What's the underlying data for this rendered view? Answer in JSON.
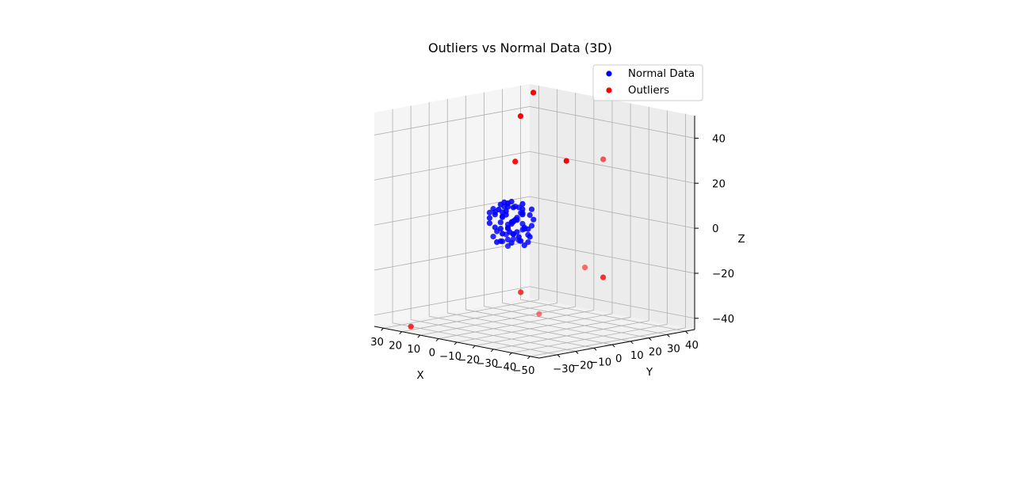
{
  "chart_data": {
    "type": "scatter",
    "projection": "3d",
    "title": "Outliers vs Normal Data (3D)",
    "xlabel": "X",
    "ylabel": "Y",
    "zlabel": "Z",
    "xlim": [
      -55,
      35
    ],
    "ylim": [
      -40,
      45
    ],
    "zlim": [
      -45,
      50
    ],
    "xticks": [
      -50,
      -40,
      -30,
      -20,
      -10,
      0,
      10,
      20,
      30
    ],
    "yticks": [
      -30,
      -20,
      -10,
      0,
      10,
      20,
      30,
      40
    ],
    "zticks": [
      -40,
      -20,
      0,
      20,
      40
    ],
    "xtick_labels": [
      "−50",
      "−40",
      "−30",
      "−20",
      "−10",
      "0",
      "10",
      "20",
      "30"
    ],
    "ytick_labels": [
      "−30",
      "−20",
      "−10",
      "0",
      "10",
      "20",
      "30",
      "40"
    ],
    "ztick_labels": [
      "−40",
      "−20",
      "0",
      "20",
      "40"
    ],
    "grid": true,
    "legend_position": "upper-right",
    "colors": {
      "normal": "#0000ff",
      "outliers": "#ff0000"
    },
    "series": [
      {
        "name": "Normal Data",
        "color": "#0000ff",
        "points": [
          [
            -2,
            1,
            3
          ],
          [
            3,
            -2,
            5
          ],
          [
            -4,
            3,
            -2
          ],
          [
            5,
            4,
            -5
          ],
          [
            1,
            -3,
            8
          ],
          [
            -6,
            -1,
            6
          ],
          [
            2,
            6,
            -7
          ],
          [
            -3,
            -5,
            1
          ],
          [
            7,
            2,
            2
          ],
          [
            -1,
            4,
            -8
          ],
          [
            4,
            -6,
            7
          ],
          [
            -7,
            2,
            -4
          ],
          [
            0,
            0,
            0
          ],
          [
            6,
            -3,
            -2
          ],
          [
            -5,
            5,
            4
          ],
          [
            3,
            3,
            9
          ],
          [
            -2,
            -4,
            -6
          ],
          [
            8,
            1,
            5
          ],
          [
            -8,
            -2,
            -1
          ],
          [
            1,
            7,
            3
          ],
          [
            -4,
            -7,
            -3
          ],
          [
            5,
            -1,
            8
          ],
          [
            2,
            2,
            -9
          ],
          [
            -6,
            6,
            2
          ],
          [
            4,
            5,
            6
          ],
          [
            -3,
            1,
            -7
          ],
          [
            7,
            -5,
            0
          ],
          [
            -1,
            -6,
            4
          ],
          [
            0,
            3,
            -4
          ],
          [
            6,
            6,
            -1
          ],
          [
            -5,
            -3,
            9
          ],
          [
            3,
            -7,
            -5
          ],
          [
            -7,
            4,
            7
          ],
          [
            1,
            -1,
            -2
          ],
          [
            8,
            3,
            -6
          ],
          [
            -2,
            7,
            -3
          ],
          [
            5,
            2,
            3
          ],
          [
            -4,
            0,
            8
          ],
          [
            2,
            -4,
            1
          ],
          [
            -8,
            3,
            0
          ],
          [
            4,
            -2,
            -8
          ],
          [
            -1,
            5,
            6
          ],
          [
            6,
            0,
            -3
          ],
          [
            -3,
            -2,
            2
          ],
          [
            0,
            -5,
            -7
          ],
          [
            7,
            4,
            4
          ],
          [
            -6,
            -5,
            -5
          ],
          [
            3,
            1,
            7
          ],
          [
            -5,
            2,
            -9
          ],
          [
            1,
            4,
            1
          ],
          [
            8,
            -4,
            2
          ],
          [
            -2,
            -1,
            -4
          ],
          [
            5,
            7,
            0
          ],
          [
            -7,
            -6,
            3
          ],
          [
            2,
            -7,
            6
          ],
          [
            -4,
            6,
            -6
          ],
          [
            4,
            0,
            9
          ],
          [
            -1,
            -3,
            -1
          ],
          [
            6,
            -6,
            5
          ],
          [
            -8,
            1,
            -7
          ],
          [
            0,
            6,
            8
          ],
          [
            3,
            -5,
            -3
          ],
          [
            -3,
            3,
            5
          ],
          [
            7,
            -1,
            -9
          ],
          [
            -6,
            0,
            1
          ],
          [
            1,
            2,
            -5
          ],
          [
            5,
            -4,
            4
          ],
          [
            -2,
            5,
            -2
          ],
          [
            8,
            6,
            7
          ],
          [
            -5,
            -7,
            -8
          ]
        ]
      },
      {
        "name": "Outliers",
        "color": "#ff0000",
        "points": [
          [
            -45,
            5,
            35
          ],
          [
            -50,
            -10,
            -10
          ],
          [
            -30,
            20,
            -22
          ],
          [
            -40,
            -25,
            -30
          ],
          [
            5,
            35,
            22
          ],
          [
            8,
            10,
            25
          ],
          [
            25,
            -30,
            -45
          ],
          [
            -10,
            -5,
            -28
          ],
          [
            28,
            40,
            48
          ],
          [
            30,
            35,
            38
          ]
        ]
      }
    ]
  }
}
